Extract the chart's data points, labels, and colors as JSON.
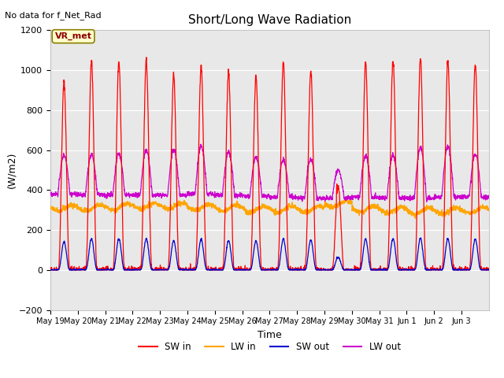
{
  "title": "Short/Long Wave Radiation",
  "xlabel": "Time",
  "ylabel": "(W/m2)",
  "topleft_text": "No data for f_Net_Rad",
  "legend_label": "VR_met",
  "ylim": [
    -200,
    1200
  ],
  "yticks": [
    -200,
    0,
    200,
    400,
    600,
    800,
    1000,
    1200
  ],
  "colors": {
    "SW_in": "#ff0000",
    "LW_in": "#ffa500",
    "SW_out": "#0000cc",
    "LW_out": "#cc00cc"
  },
  "legend_entries": [
    "SW in",
    "LW in",
    "SW out",
    "LW out"
  ],
  "plot_bg_color": "#e8e8e8",
  "fig_bg_color": "#ffffff",
  "grid_color": "#ffffff",
  "n_days": 16,
  "xtick_labels": [
    "May 19",
    "May 20",
    "May 21",
    "May 22",
    "May 23",
    "May 24",
    "May 25",
    "May 26",
    "May 27",
    "May 28",
    "May 29",
    "May 30",
    "May 31",
    "Jun 1",
    "Jun 2",
    "Jun 3"
  ],
  "sw_peaks": [
    940,
    1050,
    1040,
    1050,
    980,
    1020,
    990,
    970,
    1040,
    1000,
    420,
    1040,
    1050,
    1060,
    1050,
    1030
  ],
  "lw_out_peaks": [
    575,
    575,
    580,
    600,
    600,
    620,
    590,
    565,
    550,
    555,
    500,
    570,
    575,
    610,
    620,
    580
  ],
  "lw_out_night": [
    380,
    375,
    375,
    375,
    375,
    380,
    375,
    370,
    365,
    360,
    360,
    365,
    360,
    360,
    365,
    365
  ],
  "lw_in_base": [
    310,
    310,
    315,
    320,
    320,
    315,
    310,
    305,
    305,
    305,
    330,
    305,
    300,
    295,
    295,
    300
  ]
}
